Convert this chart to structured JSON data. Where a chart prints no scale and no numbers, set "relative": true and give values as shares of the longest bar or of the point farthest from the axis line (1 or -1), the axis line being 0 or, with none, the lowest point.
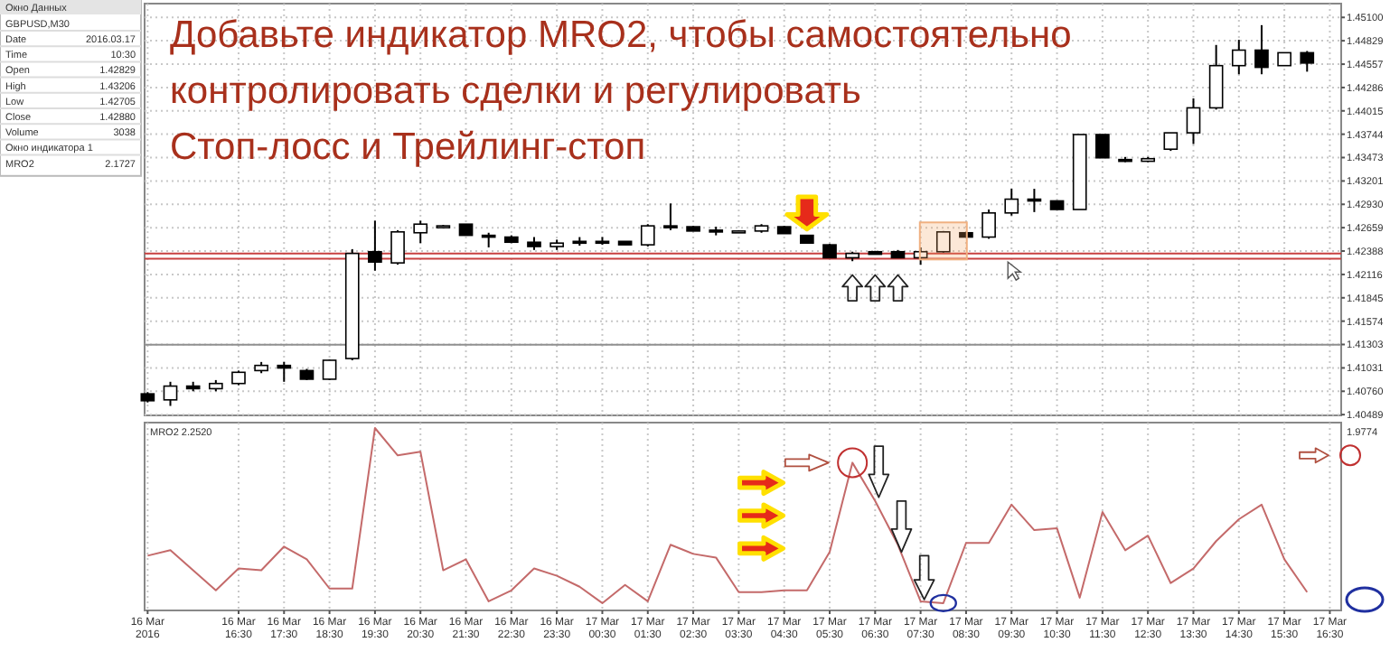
{
  "chart_data": [
    {
      "type": "candlestick",
      "title": "Добавьте индикатор MRO2, чтобы самостоятельно\nконтролировать сделки и регулировать\nСтоп-лосс и Трейлинг-стоп",
      "x": [
        "2016-03-16T14:30",
        "2016-03-16T15:00",
        "2016-03-16T15:30",
        "2016-03-16T16:00",
        "2016-03-16T16:30",
        "2016-03-16T17:00",
        "2016-03-16T17:30",
        "2016-03-16T18:00",
        "2016-03-16T18:30",
        "2016-03-16T19:00",
        "2016-03-16T19:30",
        "2016-03-16T20:00",
        "2016-03-16T20:30",
        "2016-03-16T21:00",
        "2016-03-16T21:30",
        "2016-03-16T22:00",
        "2016-03-16T22:30",
        "2016-03-16T23:00",
        "2016-03-16T23:30",
        "2016-03-17T00:00",
        "2016-03-17T00:30",
        "2016-03-17T01:00",
        "2016-03-17T01:30",
        "2016-03-17T02:00",
        "2016-03-17T02:30",
        "2016-03-17T03:00",
        "2016-03-17T03:30",
        "2016-03-17T04:00",
        "2016-03-17T04:30",
        "2016-03-17T05:00",
        "2016-03-17T05:30",
        "2016-03-17T06:00",
        "2016-03-17T06:30",
        "2016-03-17T07:00",
        "2016-03-17T07:30",
        "2016-03-17T08:00",
        "2016-03-17T08:30",
        "2016-03-17T09:00",
        "2016-03-17T09:30",
        "2016-03-17T10:00",
        "2016-03-17T10:30",
        "2016-03-17T11:00",
        "2016-03-17T11:30",
        "2016-03-17T12:00",
        "2016-03-17T12:30",
        "2016-03-17T13:00",
        "2016-03-17T13:30",
        "2016-03-17T14:00",
        "2016-03-17T14:30",
        "2016-03-17T15:00",
        "2016-03-17T15:30",
        "2016-03-17T16:00"
      ],
      "ohlc": [
        [
          1.4073,
          1.4075,
          1.4063,
          1.4065
        ],
        [
          1.4066,
          1.4087,
          1.4059,
          1.4082
        ],
        [
          1.4082,
          1.4087,
          1.4076,
          1.4079
        ],
        [
          1.4079,
          1.4089,
          1.4076,
          1.4085
        ],
        [
          1.4085,
          1.41,
          1.4083,
          1.4098
        ],
        [
          1.41,
          1.411,
          1.4097,
          1.4106
        ],
        [
          1.4106,
          1.411,
          1.4087,
          1.4103
        ],
        [
          1.41,
          1.4102,
          1.4089,
          1.409
        ],
        [
          1.409,
          1.4113,
          1.4089,
          1.4112
        ],
        [
          1.4114,
          1.4241,
          1.4112,
          1.4236
        ],
        [
          1.4238,
          1.4274,
          1.4216,
          1.4226
        ],
        [
          1.4225,
          1.4263,
          1.4223,
          1.4261
        ],
        [
          1.426,
          1.4274,
          1.4248,
          1.427
        ],
        [
          1.4267,
          1.4269,
          1.4265,
          1.4268
        ],
        [
          1.427,
          1.427,
          1.4257,
          1.4257
        ],
        [
          1.4257,
          1.426,
          1.4243,
          1.4255
        ],
        [
          1.4255,
          1.4257,
          1.4248,
          1.4249
        ],
        [
          1.4249,
          1.4255,
          1.424,
          1.4244
        ],
        [
          1.4244,
          1.4252,
          1.424,
          1.4248
        ],
        [
          1.425,
          1.4255,
          1.4245,
          1.4248
        ],
        [
          1.425,
          1.4255,
          1.4246,
          1.4249
        ],
        [
          1.425,
          1.425,
          1.4246,
          1.4246
        ],
        [
          1.4246,
          1.427,
          1.4244,
          1.4268
        ],
        [
          1.4268,
          1.4294,
          1.4263,
          1.4266
        ],
        [
          1.4267,
          1.4268,
          1.4262,
          1.4262
        ],
        [
          1.4263,
          1.4267,
          1.4257,
          1.4261
        ],
        [
          1.4261,
          1.4263,
          1.4261,
          1.4262
        ],
        [
          1.4262,
          1.427,
          1.426,
          1.4268
        ],
        [
          1.4267,
          1.4268,
          1.4259,
          1.4259
        ],
        [
          1.4257,
          1.4257,
          1.4248,
          1.4248
        ],
        [
          1.4246,
          1.4247,
          1.4231,
          1.4231
        ],
        [
          1.4231,
          1.4238,
          1.4227,
          1.4236
        ],
        [
          1.4238,
          1.4239,
          1.4235,
          1.4235
        ],
        [
          1.4238,
          1.424,
          1.4231,
          1.4231
        ],
        [
          1.4231,
          1.4243,
          1.4223,
          1.4238
        ],
        [
          1.4238,
          1.4262,
          1.4237,
          1.4261
        ],
        [
          1.426,
          1.4261,
          1.4255,
          1.4255
        ],
        [
          1.4255,
          1.4287,
          1.4253,
          1.4283
        ],
        [
          1.4283,
          1.4311,
          1.428,
          1.4299
        ],
        [
          1.4299,
          1.4311,
          1.4284,
          1.4297
        ],
        [
          1.4297,
          1.4297,
          1.4287,
          1.4287
        ],
        [
          1.4287,
          1.4374,
          1.4287,
          1.4374
        ],
        [
          1.4374,
          1.4374,
          1.4347,
          1.4347
        ],
        [
          1.4345,
          1.4348,
          1.4342,
          1.4343
        ],
        [
          1.4343,
          1.4348,
          1.4342,
          1.4346
        ],
        [
          1.4357,
          1.4376,
          1.4355,
          1.4376
        ],
        [
          1.4376,
          1.4416,
          1.4363,
          1.4405
        ],
        [
          1.4405,
          1.4478,
          1.4403,
          1.4454
        ],
        [
          1.4454,
          1.4484,
          1.4444,
          1.4472
        ],
        [
          1.4472,
          1.4501,
          1.4444,
          1.4452
        ],
        [
          1.4454,
          1.4469,
          1.4454,
          1.4469
        ],
        [
          1.4469,
          1.4471,
          1.4447,
          1.4457
        ]
      ],
      "xlim": [
        "2016-03-16T14:26",
        "2016-03-17T16:45"
      ],
      "xticks": [
        {
          "value": "2016-03-16T14:30",
          "label": null
        },
        {
          "value": "2016-03-16T16:30",
          "label": null
        },
        {
          "value": "2016-03-16T17:30",
          "label": null
        },
        {
          "value": "2016-03-16T18:30",
          "label": null
        },
        {
          "value": "2016-03-16T19:30",
          "label": null
        },
        {
          "value": "2016-03-16T20:30",
          "label": null
        },
        {
          "value": "2016-03-16T21:30",
          "label": null
        },
        {
          "value": "2016-03-16T22:30",
          "label": null
        },
        {
          "value": "2016-03-16T23:30",
          "label": null
        },
        {
          "value": "2016-03-17T00:30",
          "label": null
        },
        {
          "value": "2016-03-17T01:30",
          "label": null
        },
        {
          "value": "2016-03-17T02:30",
          "label": null
        },
        {
          "value": "2016-03-17T03:30",
          "label": null
        },
        {
          "value": "2016-03-17T04:30",
          "label": null
        },
        {
          "value": "2016-03-17T05:30",
          "label": null
        },
        {
          "value": "2016-03-17T06:30",
          "label": null
        },
        {
          "value": "2016-03-17T07:30",
          "label": null
        },
        {
          "value": "2016-03-17T08:30",
          "label": null
        },
        {
          "value": "2016-03-17T09:30",
          "label": null
        },
        {
          "value": "2016-03-17T10:30",
          "label": null
        },
        {
          "value": "2016-03-17T11:30",
          "label": null
        },
        {
          "value": "2016-03-17T12:30",
          "label": null
        },
        {
          "value": "2016-03-17T13:30",
          "label": null
        },
        {
          "value": "2016-03-17T14:30",
          "label": null
        },
        {
          "value": "2016-03-17T15:30",
          "label": null
        },
        {
          "value": "2016-03-17T16:30",
          "label": null
        }
      ],
      "ylim": [
        1.4048,
        1.4526
      ],
      "yticks": [
        {
          "value": 1.451,
          "label": "1.45100"
        },
        {
          "value": 1.44829,
          "label": "1.44829"
        },
        {
          "value": 1.44557,
          "label": "1.44557"
        },
        {
          "value": 1.44286,
          "label": "1.44286"
        },
        {
          "value": 1.44015,
          "label": "1.44015"
        },
        {
          "value": 1.43744,
          "label": "1.43744"
        },
        {
          "value": 1.43473,
          "label": "1.43473"
        },
        {
          "value": 1.43201,
          "label": "1.43201"
        },
        {
          "value": 1.4293,
          "label": "1.42930"
        },
        {
          "value": 1.42659,
          "label": "1.42659"
        },
        {
          "value": 1.42388,
          "label": "1.42388"
        },
        {
          "value": 1.42116,
          "label": "1.42116"
        },
        {
          "value": 1.41845,
          "label": "1.41845"
        },
        {
          "value": 1.41574,
          "label": "1.41574"
        },
        {
          "value": 1.41303,
          "label": "1.41303"
        },
        {
          "value": 1.41031,
          "label": "1.41031"
        },
        {
          "value": 1.4076,
          "label": "1.40760"
        },
        {
          "value": 1.40489,
          "label": "1.40489"
        }
      ],
      "ref_lines": [
        {
          "axis": "y",
          "value": 1.4236,
          "color": "#c84040"
        },
        {
          "axis": "y",
          "value": 1.423,
          "color": "#c84040"
        },
        {
          "axis": "y",
          "value": 1.413,
          "color": "#909090"
        }
      ],
      "grid": true,
      "tick_labels": "y"
    },
    {
      "type": "line",
      "title": "MRO2 2.2520",
      "relative": true,
      "x": [
        "2016-03-16T14:30",
        "2016-03-16T15:00",
        "2016-03-16T15:30",
        "2016-03-16T16:00",
        "2016-03-16T16:30",
        "2016-03-16T17:00",
        "2016-03-16T17:30",
        "2016-03-16T18:00",
        "2016-03-16T18:30",
        "2016-03-16T19:00",
        "2016-03-16T19:30",
        "2016-03-16T20:00",
        "2016-03-16T20:30",
        "2016-03-16T21:00",
        "2016-03-16T21:30",
        "2016-03-16T22:00",
        "2016-03-16T22:30",
        "2016-03-16T23:00",
        "2016-03-16T23:30",
        "2016-03-17T00:00",
        "2016-03-17T00:30",
        "2016-03-17T01:00",
        "2016-03-17T01:30",
        "2016-03-17T02:00",
        "2016-03-17T02:30",
        "2016-03-17T03:00",
        "2016-03-17T03:30",
        "2016-03-17T04:00",
        "2016-03-17T04:30",
        "2016-03-17T05:00",
        "2016-03-17T05:30",
        "2016-03-17T06:00",
        "2016-03-17T06:30",
        "2016-03-17T07:00",
        "2016-03-17T07:30",
        "2016-03-17T08:00",
        "2016-03-17T08:30",
        "2016-03-17T09:00",
        "2016-03-17T09:30",
        "2016-03-17T10:00",
        "2016-03-17T10:30",
        "2016-03-17T11:00",
        "2016-03-17T11:30",
        "2016-03-17T12:00",
        "2016-03-17T12:30",
        "2016-03-17T13:00",
        "2016-03-17T13:30",
        "2016-03-17T14:00",
        "2016-03-17T14:30",
        "2016-03-17T15:00",
        "2016-03-17T15:30",
        "2016-03-17T16:00"
      ],
      "series": [
        {
          "color": "#c46a6a",
          "values": [
            0.3,
            0.33,
            0.22,
            0.11,
            0.23,
            0.22,
            0.35,
            0.28,
            0.12,
            0.12,
            1.0,
            0.85,
            0.87,
            0.22,
            0.28,
            0.05,
            0.11,
            0.23,
            0.19,
            0.13,
            0.04,
            0.14,
            0.05,
            0.36,
            0.31,
            0.29,
            0.1,
            0.1,
            0.11,
            0.11,
            0.32,
            0.81,
            0.6,
            0.36,
            0.05,
            0.04,
            0.37,
            0.37,
            0.58,
            0.44,
            0.45,
            0.07,
            0.54,
            0.33,
            0.41,
            0.15,
            0.23,
            0.38,
            0.5,
            0.58,
            0.28,
            0.1
          ]
        }
      ],
      "xlim": [
        "2016-03-16T14:26",
        "2016-03-17T16:45"
      ],
      "xticks": [
        {
          "value": "2016-03-16T14:30",
          "label": "16 Mar 2016"
        },
        {
          "value": "2016-03-16T16:30",
          "label": "16 Mar 16:30"
        },
        {
          "value": "2016-03-16T17:30",
          "label": "16 Mar 17:30"
        },
        {
          "value": "2016-03-16T18:30",
          "label": "16 Mar 18:30"
        },
        {
          "value": "2016-03-16T19:30",
          "label": "16 Mar 19:30"
        },
        {
          "value": "2016-03-16T20:30",
          "label": "16 Mar 20:30"
        },
        {
          "value": "2016-03-16T21:30",
          "label": "16 Mar 21:30"
        },
        {
          "value": "2016-03-16T22:30",
          "label": "16 Mar 22:30"
        },
        {
          "value": "2016-03-16T23:30",
          "label": "16 Mar 23:30"
        },
        {
          "value": "2016-03-17T00:30",
          "label": "17 Mar 00:30"
        },
        {
          "value": "2016-03-17T01:30",
          "label": "17 Mar 01:30"
        },
        {
          "value": "2016-03-17T02:30",
          "label": "17 Mar 02:30"
        },
        {
          "value": "2016-03-17T03:30",
          "label": "17 Mar 03:30"
        },
        {
          "value": "2016-03-17T04:30",
          "label": "17 Mar 04:30"
        },
        {
          "value": "2016-03-17T05:30",
          "label": "17 Mar 05:30"
        },
        {
          "value": "2016-03-17T06:30",
          "label": "17 Mar 06:30"
        },
        {
          "value": "2016-03-17T07:30",
          "label": "17 Mar 07:30"
        },
        {
          "value": "2016-03-17T08:30",
          "label": "17 Mar 08:30"
        },
        {
          "value": "2016-03-17T09:30",
          "label": "17 Mar 09:30"
        },
        {
          "value": "2016-03-17T10:30",
          "label": "17 Mar 10:30"
        },
        {
          "value": "2016-03-17T11:30",
          "label": "17 Mar 11:30"
        },
        {
          "value": "2016-03-17T12:30",
          "label": "17 Mar 12:30"
        },
        {
          "value": "2016-03-17T13:30",
          "label": "17 Mar 13:30"
        },
        {
          "value": "2016-03-17T14:30",
          "label": "17 Mar 14:30"
        },
        {
          "value": "2016-03-17T15:30",
          "label": "17 Mar 15:30"
        },
        {
          "value": "2016-03-17T16:30",
          "label": "17 Mar 16:30"
        }
      ],
      "annotations": [
        "1.9774"
      ],
      "grid": "x",
      "tick_labels": "x"
    },
    {
      "type": "other",
      "title": "Окно Данных",
      "subtitle": "GBPUSD,M30",
      "categories": [
        "Date",
        "Time",
        "Open",
        "High",
        "Low",
        "Close",
        "Volume",
        "Окно индикатора 1",
        "MRO2"
      ],
      "value_labels": [
        "2016.03.17",
        "10:30",
        "1.42829",
        "1.43206",
        "1.42705",
        "1.42880",
        "3038",
        null,
        "2.1727"
      ]
    }
  ]
}
